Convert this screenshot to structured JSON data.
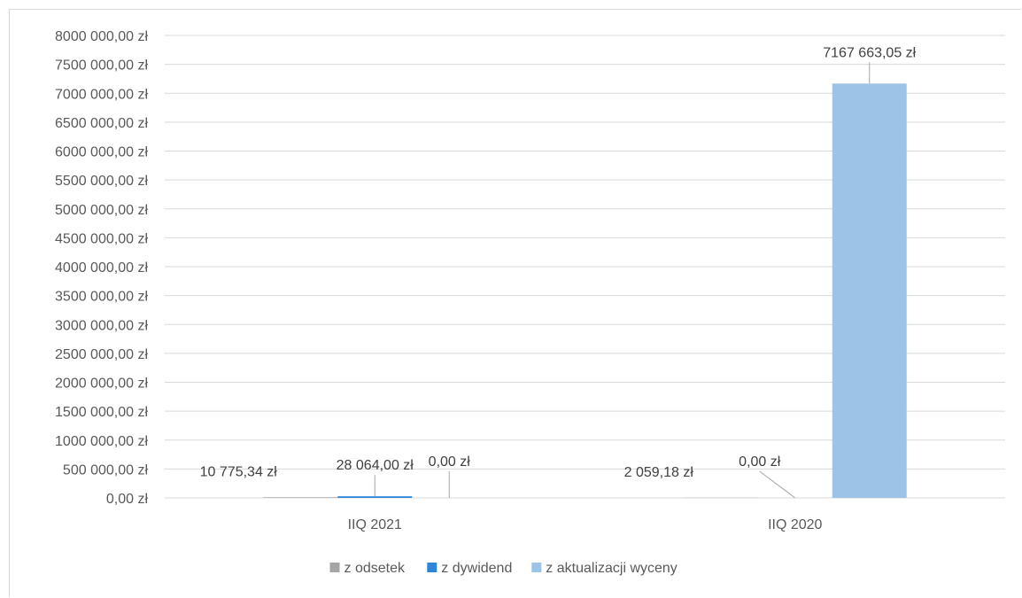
{
  "chart_data": {
    "type": "bar",
    "title": "",
    "xlabel": "",
    "ylabel": "",
    "categories": [
      "IIQ 2021",
      "IIQ 2020"
    ],
    "series": [
      {
        "name": "z odsetek",
        "color": "#a5a5a5",
        "values": [
          10775.34,
          2059.18
        ],
        "labels": [
          "10 775,34 zł",
          "2 059,18 zł"
        ]
      },
      {
        "name": "z dywidend",
        "color": "#2e86d9",
        "values": [
          28064.0,
          0.0
        ],
        "labels": [
          "28 064,00 zł",
          "0,00 zł"
        ]
      },
      {
        "name": "z aktualizacji wyceny",
        "color": "#9dc3e6",
        "values": [
          0.0,
          7167663.05
        ],
        "labels": [
          "0,00 zł",
          "7167 663,05 zł"
        ]
      }
    ],
    "ylim": [
      0,
      8000000
    ],
    "ytick_step": 500000,
    "y_tick_labels": [
      "0,00 zł",
      "500 000,00 zł",
      "1000 000,00 zł",
      "1500 000,00 zł",
      "2000 000,00 zł",
      "2500 000,00 zł",
      "3000 000,00 zł",
      "3500 000,00 zł",
      "4000 000,00 zł",
      "4500 000,00 zł",
      "5000 000,00 zł",
      "5500 000,00 zł",
      "6000 000,00 zł",
      "6500 000,00 zł",
      "7000 000,00 zł",
      "7500 000,00 zł",
      "8000 000,00 zł"
    ],
    "grid": true,
    "legend": "bottom"
  }
}
